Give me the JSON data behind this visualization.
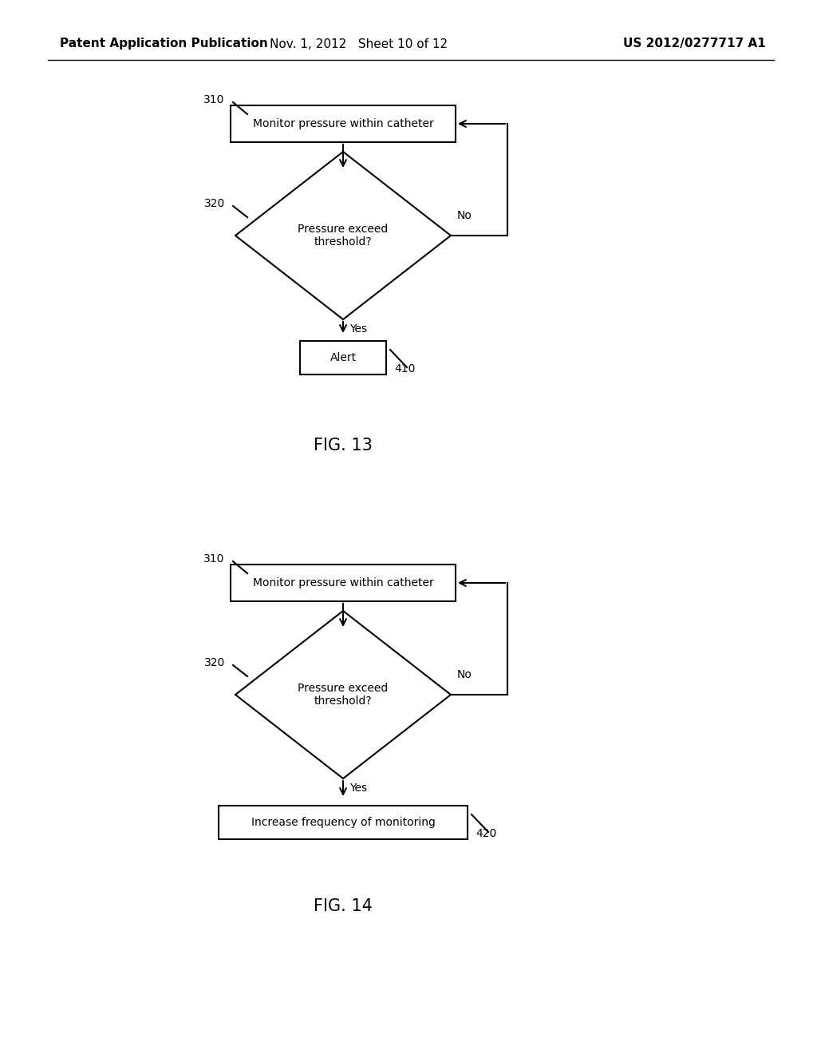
{
  "bg_color": "#ffffff",
  "header_left": "Patent Application Publication",
  "header_mid": "Nov. 1, 2012   Sheet 10 of 12",
  "header_right": "US 2012/0277717 A1",
  "fig13_label": "FIG. 13",
  "fig14_label": "FIG. 14",
  "box_text_monitor": "Monitor pressure within catheter",
  "box_text_alert": "Alert",
  "box_text_increase": "Increase frequency of monitoring",
  "diamond_text_line1": "Pressure exceed",
  "diamond_text_line2": "threshold?",
  "label_310": "310",
  "label_320": "320",
  "label_410": "410",
  "label_420": "420",
  "label_no": "No",
  "label_yes": "Yes",
  "line_color": "#000000",
  "text_color": "#000000",
  "fontsize_header": 11,
  "fontsize_label": 10,
  "fontsize_figlabel": 15,
  "fontsize_body": 10
}
